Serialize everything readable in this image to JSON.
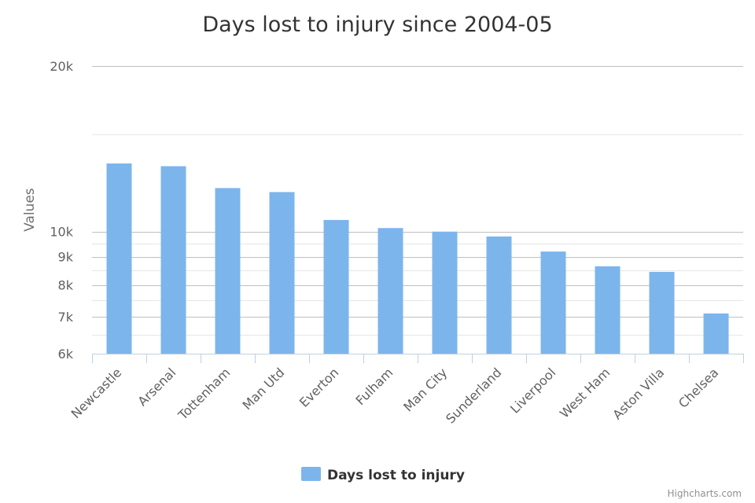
{
  "chart_data": {
    "type": "bar",
    "title": "Days lost to injury since 2004-05",
    "ylabel": "Values",
    "xlabel": "",
    "y_scale": "log",
    "ylim": [
      6000,
      20000
    ],
    "y_ticks": [
      {
        "value": 6000,
        "label": "6k"
      },
      {
        "value": 7000,
        "label": "7k"
      },
      {
        "value": 8000,
        "label": "8k"
      },
      {
        "value": 9000,
        "label": "9k"
      },
      {
        "value": 10000,
        "label": "10k"
      },
      {
        "value": 20000,
        "label": "20k"
      }
    ],
    "minor_gridlines": [
      6500,
      7500,
      8500,
      9500,
      15000
    ],
    "categories": [
      "Newcastle",
      "Arsenal",
      "Tottenham",
      "Man Utd",
      "Everton",
      "Fulham",
      "Man City",
      "Sunderland",
      "Liverpool",
      "West Ham",
      "Aston Villa",
      "Chelsea"
    ],
    "series": [
      {
        "name": "Days lost to injury",
        "color": "#7cb5ec",
        "values": [
          13300,
          13150,
          12000,
          11800,
          10500,
          10150,
          10000,
          9800,
          9200,
          8650,
          8450,
          7100
        ]
      }
    ],
    "legend_position": "bottom-center",
    "grid": true
  },
  "credits": "Highcharts.com"
}
